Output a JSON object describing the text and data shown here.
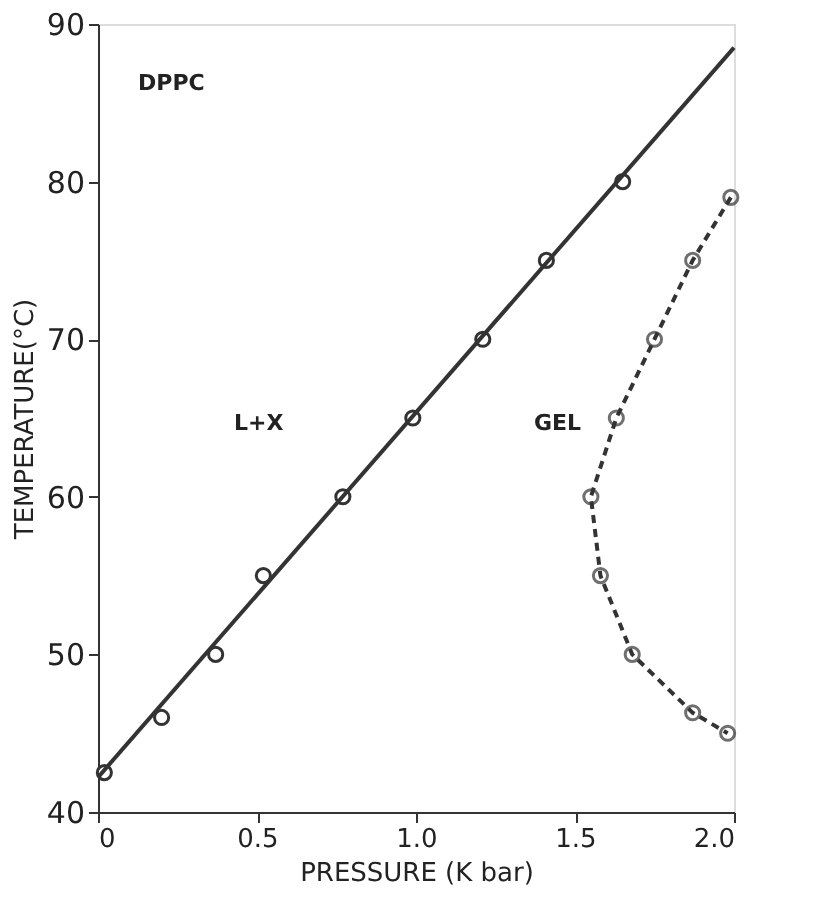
{
  "chart_data": {
    "type": "line",
    "xlabel": "PRESSURE (K bar)",
    "ylabel": "TEMPERATURE(°C)",
    "xlim": [
      0,
      2.0
    ],
    "ylim": [
      40,
      90
    ],
    "xticks": [
      0,
      0.5,
      {
        "value": 1.0,
        "label": "1.0"
      },
      1.5,
      {
        "value": 2.0,
        "label": "2.0"
      }
    ],
    "yticks": [
      40,
      50,
      60,
      70,
      80,
      90
    ],
    "grid": false,
    "annotations": [
      "DPPC",
      "L+X",
      "GEL"
    ],
    "series": [
      {
        "type": "scatter",
        "marker": "circle",
        "color": "#333333",
        "x": [
          0.02,
          0.2,
          0.37,
          0.52,
          0.77,
          0.99,
          1.21,
          1.41,
          1.65
        ],
        "values": [
          42.5,
          46,
          50,
          55,
          60,
          65,
          70,
          75,
          80
        ]
      },
      {
        "line_style": "solid",
        "marker": "none",
        "color": "#333333",
        "x": [
          0,
          2.0
        ],
        "values": [
          42.2,
          88.5
        ]
      },
      {
        "line_style": "dashed",
        "marker": "circle",
        "color": "#333333",
        "x": [
          1.99,
          1.87,
          1.75,
          1.63,
          1.55,
          1.58,
          1.68,
          1.87,
          1.98
        ],
        "values": [
          79,
          75,
          70,
          65,
          60,
          55,
          50,
          46.3,
          45
        ]
      }
    ]
  }
}
